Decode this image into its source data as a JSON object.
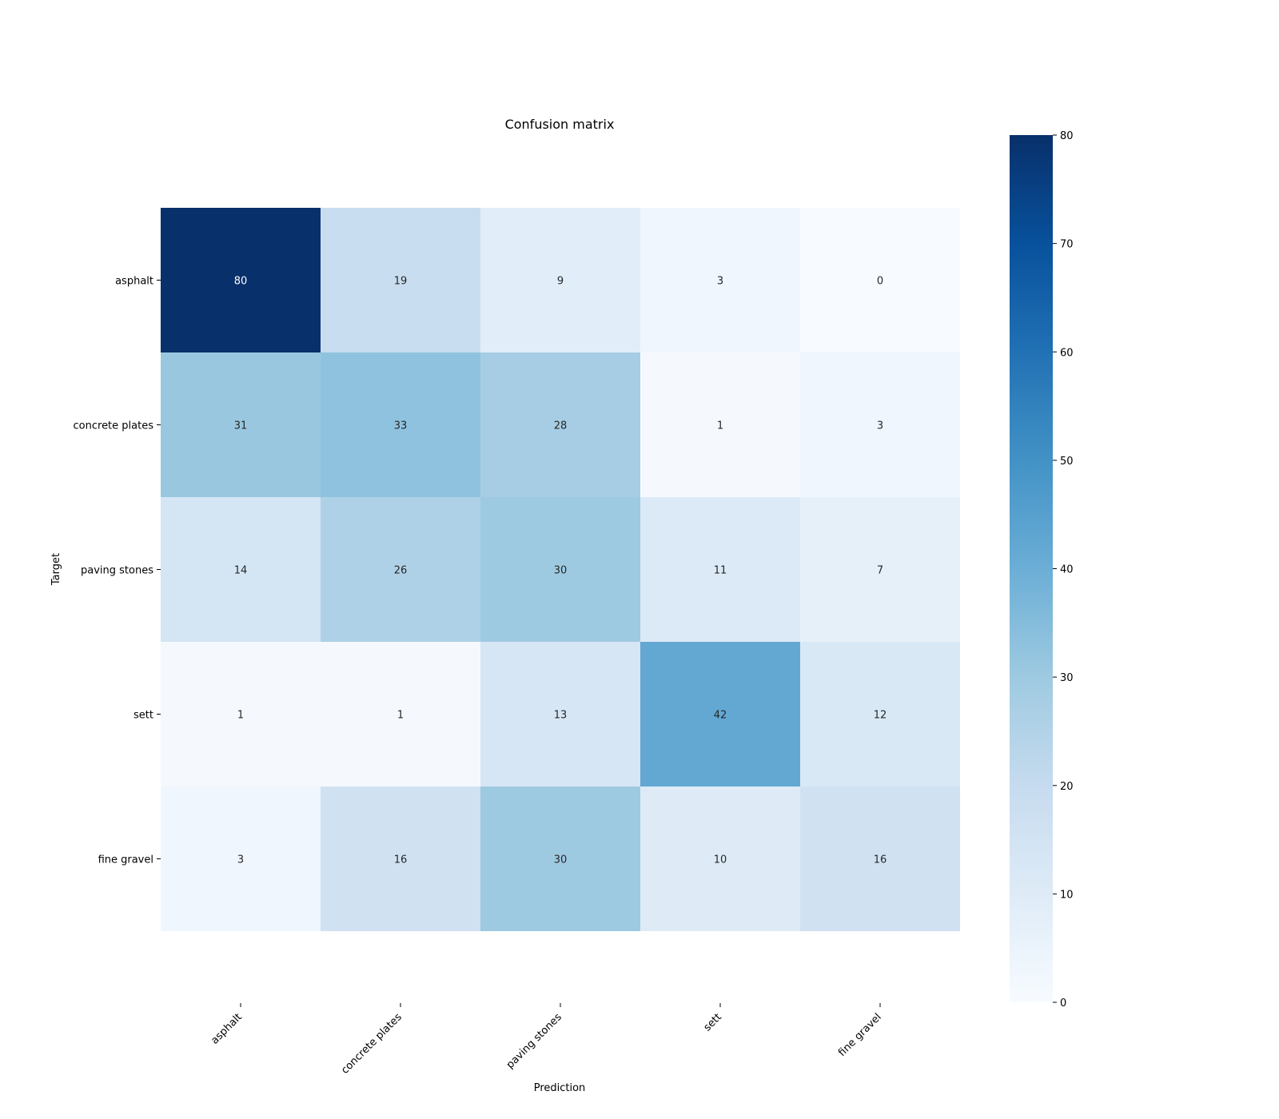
{
  "chart_data": {
    "type": "heatmap",
    "title": "Confusion matrix",
    "xlabel": "Prediction",
    "ylabel": "Target",
    "x_categories": [
      "asphalt",
      "concrete plates",
      "paving stones",
      "sett",
      "fine gravel"
    ],
    "y_categories": [
      "asphalt",
      "concrete plates",
      "paving stones",
      "sett",
      "fine gravel"
    ],
    "values": [
      [
        80,
        19,
        9,
        3,
        0
      ],
      [
        31,
        33,
        28,
        1,
        3
      ],
      [
        14,
        26,
        30,
        11,
        7
      ],
      [
        1,
        1,
        13,
        42,
        12
      ],
      [
        3,
        16,
        30,
        10,
        16
      ]
    ],
    "colorbar": {
      "range": [
        0,
        80
      ],
      "ticks": [
        0,
        10,
        20,
        30,
        40,
        50,
        60,
        70,
        80
      ]
    },
    "colormap": "Blues",
    "colormap_stops": [
      "#f7fbff",
      "#deebf7",
      "#c6dbef",
      "#9ecae1",
      "#6baed6",
      "#4292c6",
      "#2171b5",
      "#08519c",
      "#08306b"
    ],
    "grid": false
  }
}
